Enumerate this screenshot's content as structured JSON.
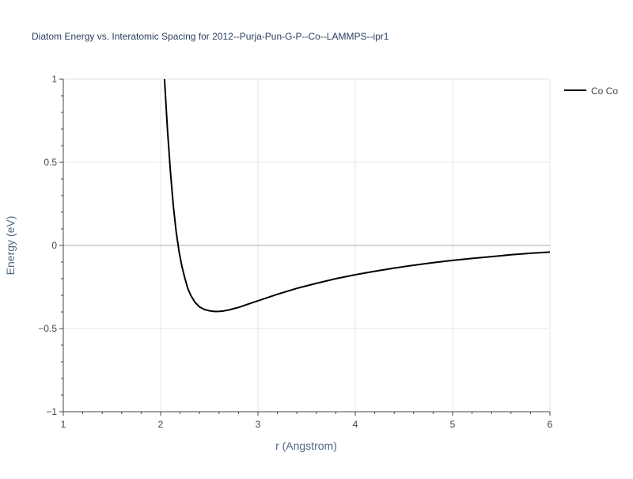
{
  "chart_data": {
    "type": "line",
    "title": "Diatom Energy vs. Interatomic Spacing for 2012--Purja-Pun-G-P--Co--LAMMPS--ipr1",
    "xlabel": "r (Angstrom)",
    "ylabel": "Energy (eV)",
    "xlim": [
      1,
      6
    ],
    "ylim": [
      -1,
      1
    ],
    "xticks": [
      1,
      2,
      3,
      4,
      5,
      6
    ],
    "yticks": [
      -1,
      -0.5,
      0,
      0.5,
      1
    ],
    "xtick_labels": [
      "1",
      "2",
      "3",
      "4",
      "5",
      "6"
    ],
    "ytick_labels": [
      "−1",
      "−0.5",
      "0",
      "0.5",
      "1"
    ],
    "grid": true,
    "legend_position": "top-right",
    "colors": {
      "line": "#000000",
      "grid": "#e5e5e5",
      "zeroline": "#c8c8c8",
      "text": "#444444",
      "title": "#2a3f5f",
      "axis_title": "#506784"
    },
    "series": [
      {
        "name": "Co Co",
        "x": [
          2.04,
          2.07,
          2.1,
          2.13,
          2.16,
          2.19,
          2.22,
          2.25,
          2.28,
          2.31,
          2.35,
          2.4,
          2.45,
          2.5,
          2.55,
          2.6,
          2.65,
          2.7,
          2.8,
          2.9,
          3.0,
          3.2,
          3.4,
          3.6,
          3.8,
          4.0,
          4.2,
          4.4,
          4.6,
          4.8,
          5.0,
          5.2,
          5.4,
          5.6,
          5.8,
          6.0
        ],
        "y": [
          1.0,
          0.7,
          0.45,
          0.24,
          0.08,
          -0.04,
          -0.13,
          -0.2,
          -0.26,
          -0.3,
          -0.34,
          -0.37,
          -0.385,
          -0.393,
          -0.397,
          -0.397,
          -0.394,
          -0.388,
          -0.373,
          -0.353,
          -0.333,
          -0.294,
          -0.258,
          -0.228,
          -0.2,
          -0.176,
          -0.155,
          -0.136,
          -0.119,
          -0.104,
          -0.09,
          -0.078,
          -0.067,
          -0.056,
          -0.047,
          -0.04
        ]
      }
    ]
  }
}
